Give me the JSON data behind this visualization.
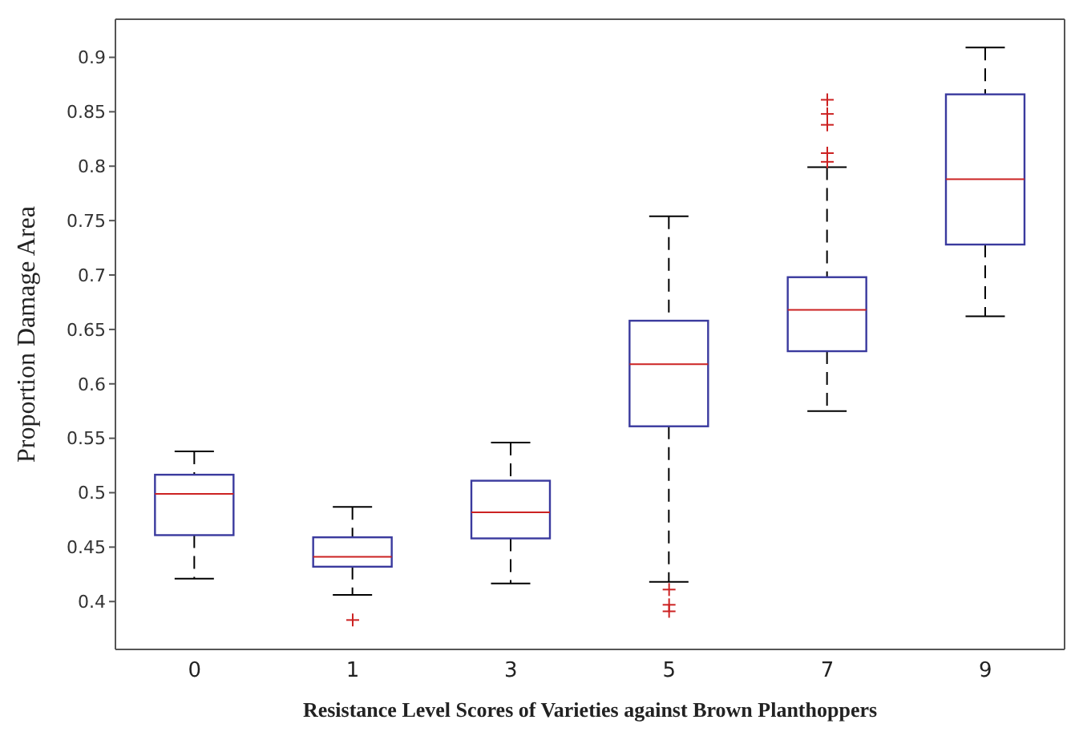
{
  "chart_data": {
    "type": "box",
    "xlabel": "Resistance Level Scores of Varieties against Brown Planthoppers",
    "ylabel": "Proportion Damage Area",
    "categories": [
      "0",
      "1",
      "3",
      "5",
      "7",
      "9"
    ],
    "color": "#3a3a9e",
    "boxes": [
      {
        "low": 0.421,
        "q1": 0.461,
        "median": 0.499,
        "q3": 0.5165,
        "high": 0.538
      },
      {
        "low": 0.406,
        "q1": 0.432,
        "median": 0.441,
        "q3": 0.459,
        "high": 0.487,
        "outliers": [
          0.383
        ]
      },
      {
        "low": 0.4165,
        "q1": 0.458,
        "median": 0.482,
        "q3": 0.511,
        "high": 0.546
      },
      {
        "low": 0.418,
        "q1": 0.561,
        "median": 0.618,
        "q3": 0.658,
        "high": 0.754,
        "outliers": [
          0.411,
          0.397,
          0.391
        ]
      },
      {
        "low": 0.575,
        "q1": 0.63,
        "median": 0.668,
        "q3": 0.698,
        "high": 0.799,
        "outliers": [
          0.861,
          0.848,
          0.838,
          0.812,
          0.804
        ]
      },
      {
        "low": 0.662,
        "q1": 0.728,
        "median": 0.788,
        "q3": 0.866,
        "high": 0.909
      }
    ],
    "ylim": [
      0.356,
      0.935
    ],
    "yticks": [
      0.4,
      0.45,
      0.5,
      0.55,
      0.6,
      0.65,
      0.7,
      0.75,
      0.8,
      0.85,
      0.9
    ],
    "grid": false
  }
}
